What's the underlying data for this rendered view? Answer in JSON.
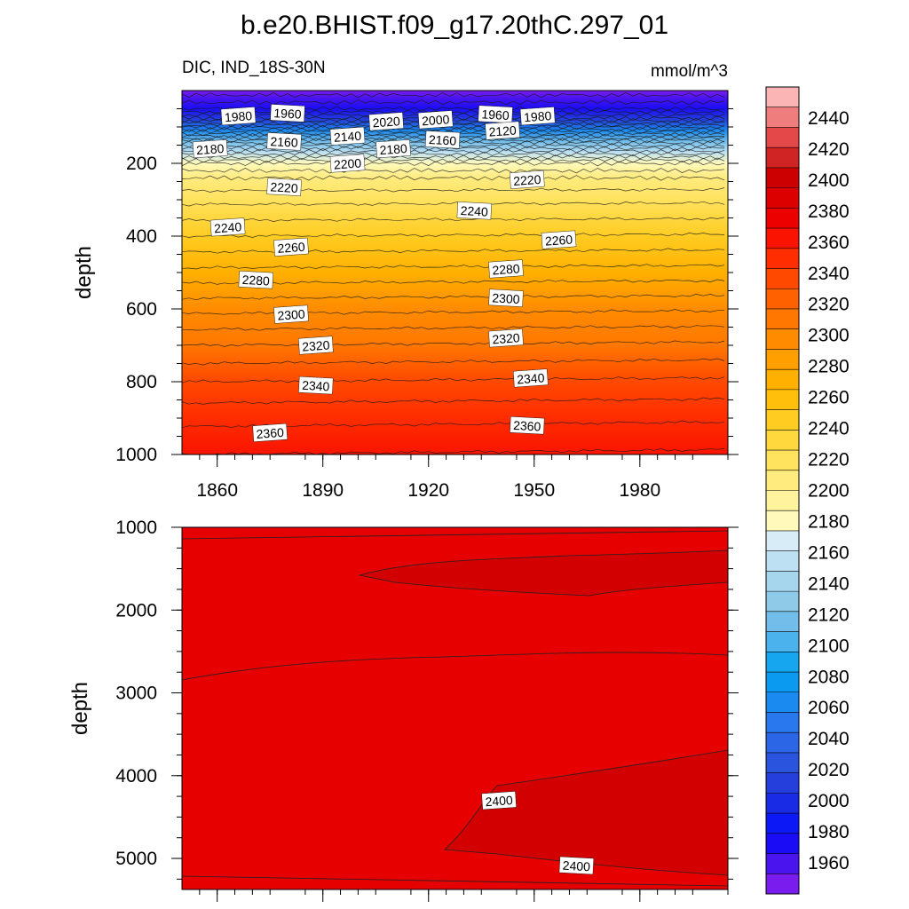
{
  "figure": {
    "title": "b.e20.BHIST.f09_g17.20thC.297_01",
    "left_string": "DIC, IND_18S-30N",
    "right_string": "mmol/m^3"
  },
  "chart_data": [
    {
      "type": "contour",
      "panel": "upper",
      "variable": "DIC",
      "region": "IND_18S-30N",
      "units": "mmol/m^3",
      "ylabel": "depth",
      "y_reversed": true,
      "xlim": [
        1850,
        2005
      ],
      "ylim": [
        0,
        1000
      ],
      "x_ticks": [
        1860,
        1890,
        1920,
        1950,
        1980
      ],
      "y_ticks": [
        200,
        400,
        600,
        800,
        1000
      ],
      "depth_profile": [
        {
          "depth": 0,
          "value": 1950
        },
        {
          "depth": 20,
          "value": 1958
        },
        {
          "depth": 50,
          "value": 1975
        },
        {
          "depth": 80,
          "value": 2010
        },
        {
          "depth": 110,
          "value": 2060
        },
        {
          "depth": 140,
          "value": 2110
        },
        {
          "depth": 170,
          "value": 2150
        },
        {
          "depth": 200,
          "value": 2185
        },
        {
          "depth": 240,
          "value": 2205
        },
        {
          "depth": 300,
          "value": 2222
        },
        {
          "depth": 400,
          "value": 2245
        },
        {
          "depth": 500,
          "value": 2268
        },
        {
          "depth": 600,
          "value": 2292
        },
        {
          "depth": 700,
          "value": 2315
        },
        {
          "depth": 800,
          "value": 2335
        },
        {
          "depth": 900,
          "value": 2352
        },
        {
          "depth": 1000,
          "value": 2365
        }
      ],
      "contour_labels": [
        {
          "text": "1980",
          "year": 1866,
          "depth": 70
        },
        {
          "text": "1960",
          "year": 1880,
          "depth": 62
        },
        {
          "text": "2020",
          "year": 1908,
          "depth": 85
        },
        {
          "text": "2000",
          "year": 1922,
          "depth": 80
        },
        {
          "text": "1960",
          "year": 1939,
          "depth": 65
        },
        {
          "text": "1980",
          "year": 1951,
          "depth": 70
        },
        {
          "text": "2180",
          "year": 1858,
          "depth": 160
        },
        {
          "text": "2160",
          "year": 1879,
          "depth": 140
        },
        {
          "text": "2140",
          "year": 1897,
          "depth": 125
        },
        {
          "text": "2180",
          "year": 1910,
          "depth": 160
        },
        {
          "text": "2160",
          "year": 1924,
          "depth": 135
        },
        {
          "text": "2120",
          "year": 1941,
          "depth": 110
        },
        {
          "text": "2200",
          "year": 1897,
          "depth": 200
        },
        {
          "text": "2220",
          "year": 1879,
          "depth": 265
        },
        {
          "text": "2220",
          "year": 1948,
          "depth": 245
        },
        {
          "text": "2240",
          "year": 1863,
          "depth": 375
        },
        {
          "text": "2240",
          "year": 1933,
          "depth": 330
        },
        {
          "text": "2260",
          "year": 1881,
          "depth": 430
        },
        {
          "text": "2260",
          "year": 1957,
          "depth": 410
        },
        {
          "text": "2280",
          "year": 1871,
          "depth": 520
        },
        {
          "text": "2280",
          "year": 1942,
          "depth": 490
        },
        {
          "text": "2300",
          "year": 1881,
          "depth": 615
        },
        {
          "text": "2300",
          "year": 1942,
          "depth": 570
        },
        {
          "text": "2320",
          "year": 1888,
          "depth": 700
        },
        {
          "text": "2320",
          "year": 1942,
          "depth": 680
        },
        {
          "text": "2340",
          "year": 1888,
          "depth": 810
        },
        {
          "text": "2340",
          "year": 1949,
          "depth": 790
        },
        {
          "text": "2360",
          "year": 1875,
          "depth": 940
        },
        {
          "text": "2360",
          "year": 1948,
          "depth": 920
        }
      ]
    },
    {
      "type": "contour",
      "panel": "lower",
      "variable": "DIC",
      "region": "IND_18S-30N",
      "units": "mmol/m^3",
      "ylabel": "depth",
      "y_reversed": true,
      "xlim": [
        1850,
        2005
      ],
      "ylim": [
        1000,
        5375
      ],
      "x_ticks": [
        1860,
        1890,
        1920,
        1950,
        1980
      ],
      "x_ticklabels_visible": false,
      "y_ticks": [
        1000,
        2000,
        3000,
        4000,
        5000
      ],
      "fill_levels": [
        {
          "range": "2380-2400",
          "color": "#e60000"
        },
        {
          "range": "2400-2420",
          "color": "#d20000"
        }
      ],
      "contour_labels": [
        {
          "text": "2400",
          "year": 1940,
          "depth": 4300
        },
        {
          "text": "2400",
          "year": 1962,
          "depth": 5085
        }
      ]
    }
  ],
  "colorbar": {
    "labels": [
      "2440",
      "2420",
      "2400",
      "2380",
      "2360",
      "2340",
      "2320",
      "2300",
      "2280",
      "2260",
      "2240",
      "2220",
      "2200",
      "2180",
      "2160",
      "2140",
      "2120",
      "2100",
      "2080",
      "2060",
      "2040",
      "2020",
      "2000",
      "1980",
      "1960"
    ],
    "colors": [
      "#fbb5b5",
      "#ef7d7d",
      "#e54848",
      "#d02323",
      "#cc0000",
      "#dc0000",
      "#ec0000",
      "#fa1400",
      "#ff2d00",
      "#ff4800",
      "#ff6000",
      "#ff7700",
      "#ff8c00",
      "#ff9f00",
      "#ffb000",
      "#ffbf0a",
      "#ffcc22",
      "#ffd83e",
      "#ffe25e",
      "#ffeb7e",
      "#fff39e",
      "#fffabc",
      "#d8ecf7",
      "#bde1f2",
      "#a6d6ee",
      "#8fcae9",
      "#72bdea",
      "#4bb2ee",
      "#16a6ef",
      "#0a9bf0",
      "#1a8af0",
      "#2a78ee",
      "#2b66e6",
      "#2a54de",
      "#243fdc",
      "#1a2be6",
      "#0c18f5",
      "#1a0df5",
      "#4a14ee",
      "#7a1cee"
    ]
  }
}
